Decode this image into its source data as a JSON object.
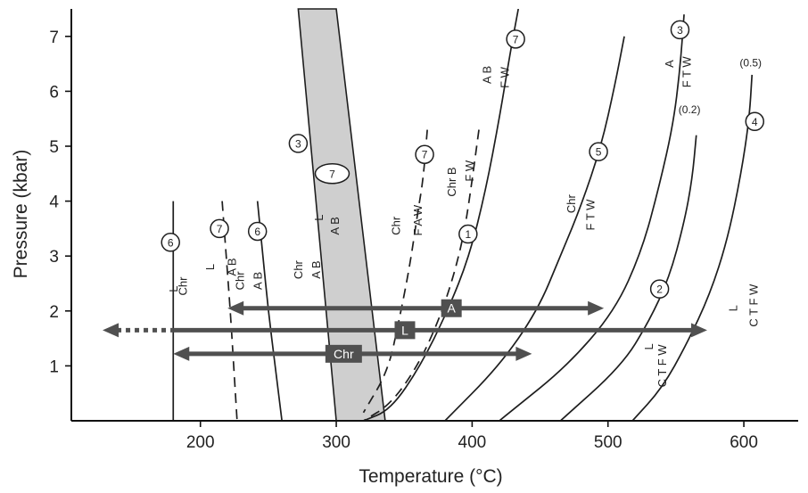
{
  "chart_data": {
    "type": "line",
    "xlabel": "Temperature (°C)",
    "ylabel": "Pressure (kbar)",
    "xlim": [
      105,
      640
    ],
    "ylim": [
      0,
      7.5
    ],
    "xticks": [
      "200",
      "300",
      "400",
      "500",
      "600"
    ],
    "yticks": [
      "1",
      "2",
      "3",
      "4",
      "5",
      "6",
      "7"
    ],
    "shaded_band": {
      "x_top": [
        272,
        300
      ],
      "x_bottom": [
        300,
        336
      ],
      "y": [
        0,
        7.5
      ],
      "color": "#cfcfcf"
    },
    "curves": [
      {
        "id": "c6a",
        "style": "solid",
        "points": [
          [
            180,
            0
          ],
          [
            180,
            4.0
          ]
        ]
      },
      {
        "id": "c7a",
        "style": "dashed",
        "points": [
          [
            216,
            4.0
          ],
          [
            219,
            3.0
          ],
          [
            222,
            2.0
          ],
          [
            224.5,
            1.0
          ],
          [
            227,
            0
          ]
        ]
      },
      {
        "id": "c6b",
        "style": "solid",
        "points": [
          [
            242,
            4.0
          ],
          [
            246,
            3.0
          ],
          [
            250,
            2.0
          ],
          [
            255,
            1.0
          ],
          [
            260,
            0
          ]
        ]
      },
      {
        "id": "c7b",
        "style": "dashed",
        "points": [
          [
            367,
            5.3
          ],
          [
            364,
            4.4
          ],
          [
            360,
            3.8
          ],
          [
            354,
            2.8
          ],
          [
            346,
            1.8
          ],
          [
            338,
            0.9
          ],
          [
            320,
            0.15
          ]
        ]
      },
      {
        "id": "c1",
        "style": "dashed",
        "points": [
          [
            405,
            5.3
          ],
          [
            399,
            4.2
          ],
          [
            394,
            3.4
          ],
          [
            386,
            2.6
          ],
          [
            375,
            1.8
          ],
          [
            360,
            1.0
          ],
          [
            340,
            0.3
          ],
          [
            320,
            0
          ]
        ]
      },
      {
        "id": "c7c",
        "style": "solid",
        "points": [
          [
            434,
            7.5
          ],
          [
            428,
            6.7
          ],
          [
            420,
            5.5
          ],
          [
            410,
            4.2
          ],
          [
            398,
            3.0
          ],
          [
            382,
            2.0
          ],
          [
            362,
            1.0
          ],
          [
            340,
            0.2
          ],
          [
            320,
            0
          ]
        ]
      },
      {
        "id": "c5",
        "style": "solid",
        "points": [
          [
            512,
            7.0
          ],
          [
            505,
            6.1
          ],
          [
            495,
            5.0
          ],
          [
            480,
            3.9
          ],
          [
            465,
            3.0
          ],
          [
            448,
            2.0
          ],
          [
            420,
            1.0
          ],
          [
            380,
            0
          ]
        ]
      },
      {
        "id": "c3",
        "style": "solid",
        "points": [
          [
            556,
            7.4
          ],
          [
            553,
            6.4
          ],
          [
            548,
            5.4
          ],
          [
            538,
            4.3
          ],
          [
            525,
            3.1
          ],
          [
            505,
            2.0
          ],
          [
            470,
            1.0
          ],
          [
            430,
            0.2
          ],
          [
            420,
            0
          ]
        ]
      },
      {
        "id": "c2",
        "style": "solid",
        "points": [
          [
            565,
            5.2
          ],
          [
            562,
            4.4
          ],
          [
            556,
            3.6
          ],
          [
            545,
            2.6
          ],
          [
            530,
            1.8
          ],
          [
            510,
            1.0
          ],
          [
            465,
            0
          ]
        ]
      },
      {
        "id": "c4",
        "style": "solid",
        "points": [
          [
            606,
            6.3
          ],
          [
            604,
            5.5
          ],
          [
            598,
            4.5
          ],
          [
            588,
            3.3
          ],
          [
            575,
            2.3
          ],
          [
            558,
            1.4
          ],
          [
            540,
            0.6
          ],
          [
            518,
            0
          ]
        ]
      }
    ],
    "circle_markers": [
      {
        "num": "6",
        "x": 178,
        "y": 3.25
      },
      {
        "num": "7",
        "x": 214,
        "y": 3.5
      },
      {
        "num": "6",
        "x": 242,
        "y": 3.45
      },
      {
        "num": "3",
        "x": 272,
        "y": 5.05
      },
      {
        "num": "7",
        "x": 297,
        "y": 4.5,
        "oval": true
      },
      {
        "num": "7",
        "x": 365,
        "y": 4.85
      },
      {
        "num": "1",
        "x": 397,
        "y": 3.4
      },
      {
        "num": "7",
        "x": 432,
        "y": 6.95
      },
      {
        "num": "5",
        "x": 493,
        "y": 4.9
      },
      {
        "num": "3",
        "x": 553,
        "y": 7.12
      },
      {
        "num": "2",
        "x": 538,
        "y": 2.4
      },
      {
        "num": "4",
        "x": 608,
        "y": 5.45
      }
    ],
    "reaction_labels": [
      {
        "x": 183,
        "y": 2.4,
        "text": "L"
      },
      {
        "x": 190,
        "y": 2.45,
        "text": "Chr"
      },
      {
        "x": 210,
        "y": 2.8,
        "text": "L"
      },
      {
        "x": 226,
        "y": 2.8,
        "text": "A B"
      },
      {
        "x": 232,
        "y": 2.55,
        "text": "Chr"
      },
      {
        "x": 245,
        "y": 2.55,
        "text": "A B"
      },
      {
        "x": 275,
        "y": 2.75,
        "text": "Chr"
      },
      {
        "x": 288,
        "y": 2.75,
        "text": "A B"
      },
      {
        "x": 290,
        "y": 3.7,
        "text": "L"
      },
      {
        "x": 302,
        "y": 3.55,
        "text": "A B"
      },
      {
        "x": 347,
        "y": 3.55,
        "text": "Chr"
      },
      {
        "x": 363,
        "y": 3.65,
        "text": "F A W"
      },
      {
        "x": 388,
        "y": 4.35,
        "text": "Chr B"
      },
      {
        "x": 401,
        "y": 4.55,
        "text": "F W"
      },
      {
        "x": 414,
        "y": 6.3,
        "text": "A B"
      },
      {
        "x": 427,
        "y": 6.25,
        "text": "F W"
      },
      {
        "x": 476,
        "y": 3.95,
        "text": "Chr"
      },
      {
        "x": 490,
        "y": 3.75,
        "text": "F T W"
      },
      {
        "x": 548,
        "y": 6.5,
        "text": "A"
      },
      {
        "x": 561,
        "y": 6.35,
        "text": "F T W"
      },
      {
        "x": 533,
        "y": 1.35,
        "text": "L"
      },
      {
        "x": 543,
        "y": 1.0,
        "text": "C T F W"
      },
      {
        "x": 595,
        "y": 2.05,
        "text": "L"
      },
      {
        "x": 610,
        "y": 2.1,
        "text": "C T F W"
      }
    ],
    "notes": [
      {
        "x": 560,
        "y": 5.6,
        "text": "(0.2)"
      },
      {
        "x": 605,
        "y": 6.45,
        "text": "(0.5)"
      }
    ],
    "range_bars": [
      {
        "label": "A",
        "from": 220,
        "to": 497,
        "y": 2.05
      },
      {
        "label": "L",
        "from": 128,
        "to": 573,
        "y": 1.65,
        "dotted_start": 180
      },
      {
        "label": "Chr",
        "from": 180,
        "to": 444,
        "y": 1.22
      }
    ],
    "colors": {
      "line": "#1e1e1e",
      "bar": "#505050",
      "band": "#cfcfcf",
      "axis": "#111111"
    }
  }
}
